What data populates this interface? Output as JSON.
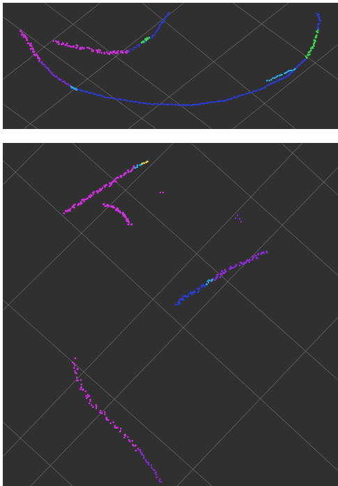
{
  "viewports": [
    {
      "name": "top-view",
      "background": "#303030",
      "grid_color": "#8a8a8a",
      "point_colors": [
        "#d030e0",
        "#7a2cdc",
        "#2a3cd8",
        "#2ab0e8",
        "#3ad84a"
      ]
    },
    {
      "name": "bottom-view",
      "background": "#303030",
      "grid_color": "#8a8a8a",
      "point_colors": [
        "#d030e0",
        "#8a2cdc",
        "#2a3cd8",
        "#2ab0e8",
        "#3ad84a",
        "#e8d040"
      ]
    }
  ]
}
